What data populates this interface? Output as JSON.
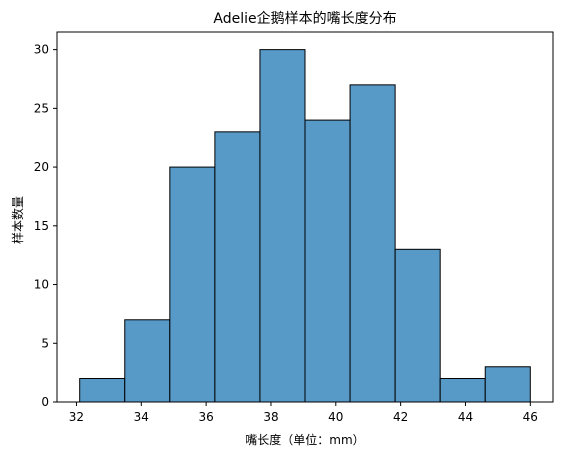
{
  "chart_data": {
    "type": "bar",
    "title": "Adelie企鹅样本的嘴长度分布",
    "xlabel": "嘴长度（单位：mm）",
    "ylabel": "样本数量",
    "bin_edges": [
      32.1,
      33.49,
      34.88,
      36.27,
      37.66,
      39.05,
      40.44,
      41.83,
      43.22,
      44.61,
      46.0
    ],
    "values": [
      2,
      7,
      20,
      23,
      30,
      24,
      27,
      13,
      2,
      3
    ],
    "xlim": [
      31.4,
      46.7
    ],
    "ylim": [
      0,
      31.5
    ],
    "xticks": [
      32,
      34,
      36,
      38,
      40,
      42,
      44,
      46
    ],
    "yticks": [
      0,
      5,
      10,
      15,
      20,
      25,
      30
    ],
    "bar_color": "#5799c7",
    "edge_color": "#000000",
    "grid": false
  }
}
